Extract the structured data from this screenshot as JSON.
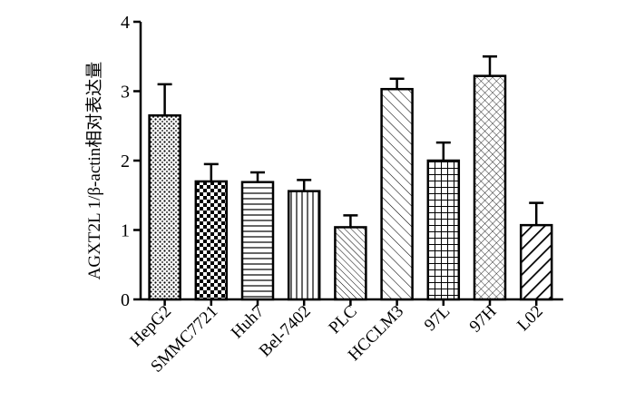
{
  "chart_data": {
    "type": "bar",
    "ylabel": "AGXT2L 1/β-actin相对表达量",
    "xlabel": "",
    "categories": [
      "HepG2",
      "SMMC7721",
      "Huh7",
      "Bel-7402",
      "PLC",
      "HCCLM3",
      "97L",
      "97H",
      "L02"
    ],
    "values": [
      2.65,
      1.7,
      1.69,
      1.56,
      1.04,
      3.03,
      2.0,
      3.22,
      1.07
    ],
    "errors": [
      0.45,
      0.25,
      0.14,
      0.16,
      0.17,
      0.15,
      0.26,
      0.28,
      0.32
    ],
    "patterns": [
      "dots",
      "checker",
      "hlines",
      "vlines",
      "diag-fine",
      "diag-wide",
      "grid",
      "crosshatch",
      "diag-bold"
    ],
    "ylim": [
      0,
      4
    ],
    "yticks": [
      0,
      1,
      2,
      3,
      4
    ],
    "grid": false,
    "legend": "none"
  }
}
